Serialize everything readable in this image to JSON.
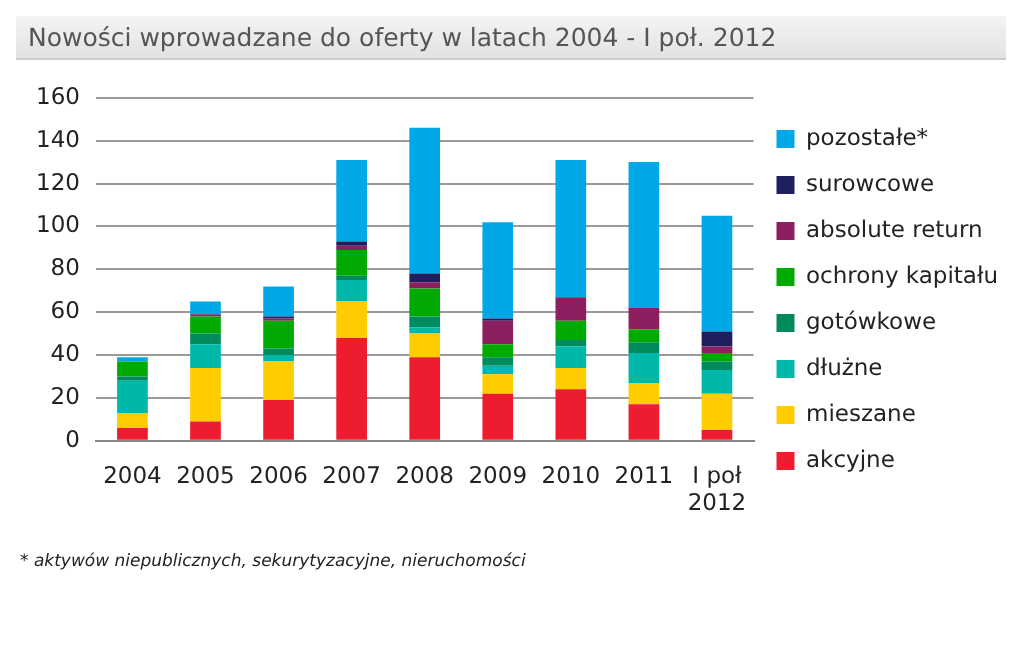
{
  "chart_data": {
    "type": "bar",
    "title": "Nowości wprowadzane do oferty w latach 2004 - I poł. 2012",
    "categories": [
      "2004",
      "2005",
      "2006",
      "2007",
      "2008",
      "2009",
      "2010",
      "2011",
      "I poł 2012"
    ],
    "stacked": true,
    "grid": "y",
    "legend": "right",
    "ylim": [
      0,
      160
    ],
    "yticks": [
      0,
      20,
      40,
      60,
      80,
      100,
      120,
      140,
      160
    ],
    "annotations": [
      "* aktywów niepublicznych, sekurytyzacyjne, nieruchomości"
    ],
    "series": [
      {
        "name": "akcyjne",
        "color": "#ed1c2e",
        "values": [
          6,
          9,
          19,
          48,
          39,
          22,
          24,
          17,
          5
        ]
      },
      {
        "name": "mieszane",
        "color": "#ffcc00",
        "values": [
          7,
          25,
          18,
          17,
          11,
          9,
          10,
          10,
          17
        ]
      },
      {
        "name": "dłużne",
        "color": "#00b8a9",
        "values": [
          15,
          11,
          3,
          10,
          3,
          4,
          10,
          14,
          11
        ]
      },
      {
        "name": "gotówkowe",
        "color": "#008a5e",
        "values": [
          2,
          5,
          3,
          2,
          5,
          4,
          3,
          5,
          4
        ]
      },
      {
        "name": "ochrony kapitału",
        "color": "#00aa00",
        "values": [
          7,
          8,
          13,
          12,
          13,
          6,
          9,
          6,
          4
        ]
      },
      {
        "name": "absolute return",
        "color": "#8b1f5f",
        "values": [
          0,
          1,
          1,
          2,
          3,
          11,
          11,
          10,
          3
        ]
      },
      {
        "name": "surowcowe",
        "color": "#1f1f5f",
        "values": [
          0,
          0,
          1,
          2,
          4,
          1,
          0,
          0,
          7
        ]
      },
      {
        "name": "pozostałe*",
        "color": "#00a8e8",
        "values": [
          2,
          6,
          14,
          38,
          68,
          45,
          64,
          68,
          54
        ]
      }
    ]
  }
}
